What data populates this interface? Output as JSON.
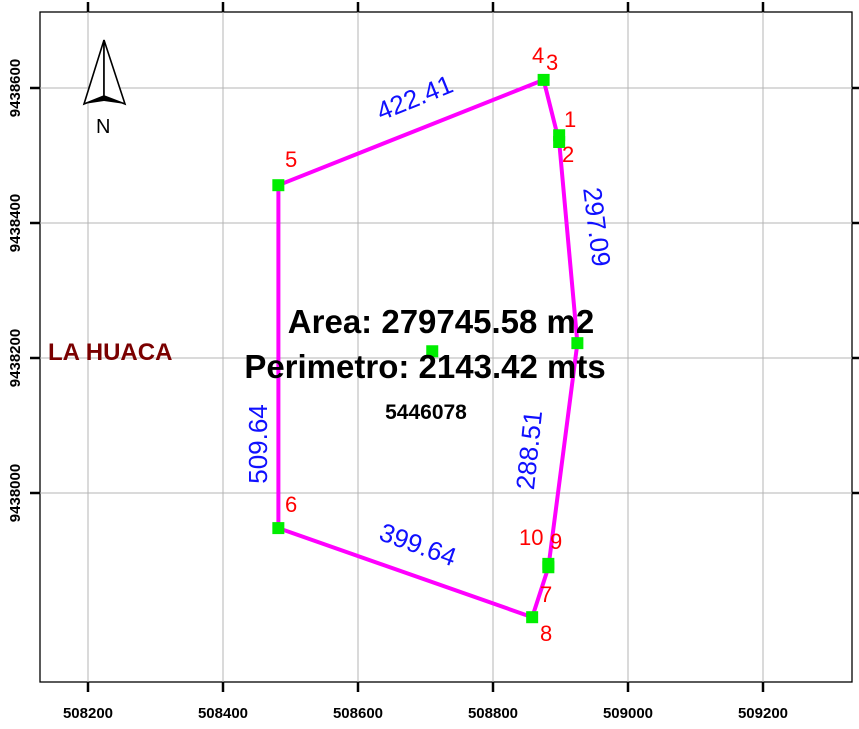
{
  "x_ticks": [
    "508200",
    "508400",
    "508600",
    "508800",
    "509000",
    "509200"
  ],
  "y_ticks": [
    "9438600",
    "9438400",
    "9438200",
    "9438000"
  ],
  "vertices": [
    {
      "label": "4",
      "e": 508875,
      "n": 9438612
    },
    {
      "label": "3",
      "e": 508875,
      "n": 9438612
    },
    {
      "label": "1",
      "e": 508898,
      "n": 9438530
    },
    {
      "label": "2",
      "e": 508898,
      "n": 9438520
    },
    {
      "label": "5",
      "e": 508482,
      "n": 9438456
    },
    {
      "label": "6",
      "e": 508482,
      "n": 9437948
    },
    {
      "label": "10",
      "e": 508882,
      "n": 9437895
    },
    {
      "label": "9",
      "e": 508882,
      "n": 9437890
    },
    {
      "label": "7",
      "e": 508858,
      "n": 9437816
    },
    {
      "label": "8",
      "e": 508858,
      "n": 9437816
    }
  ],
  "polygon": [
    {
      "e": 508875,
      "n": 9438612
    },
    {
      "e": 508898,
      "n": 9438520
    },
    {
      "e": 508925,
      "n": 9438222
    },
    {
      "e": 508882,
      "n": 9437890
    },
    {
      "e": 508858,
      "n": 9437816
    },
    {
      "e": 508482,
      "n": 9437948
    },
    {
      "e": 508482,
      "n": 9438456
    }
  ],
  "extra_markers": [
    {
      "e": 508925,
      "n": 9438222
    },
    {
      "e": 508710,
      "n": 9438210
    }
  ],
  "segments": [
    {
      "label": "422.41"
    },
    {
      "label": "297.09"
    },
    {
      "label": "288.51"
    },
    {
      "label": "399.64"
    },
    {
      "label": "509.64"
    }
  ],
  "area_text": "Area: 279745.58 m2",
  "perimeter_text": "Perimetro: 2143.42 mts",
  "code_text": "5446078",
  "place_text": "LA HUACA",
  "north_label": "N",
  "colors": {
    "polygon": "#ff00ff",
    "marker": "#00ee00",
    "vertex_label": "#ff0000",
    "segment_label": "#1010ff",
    "place_label": "#7a0000"
  }
}
